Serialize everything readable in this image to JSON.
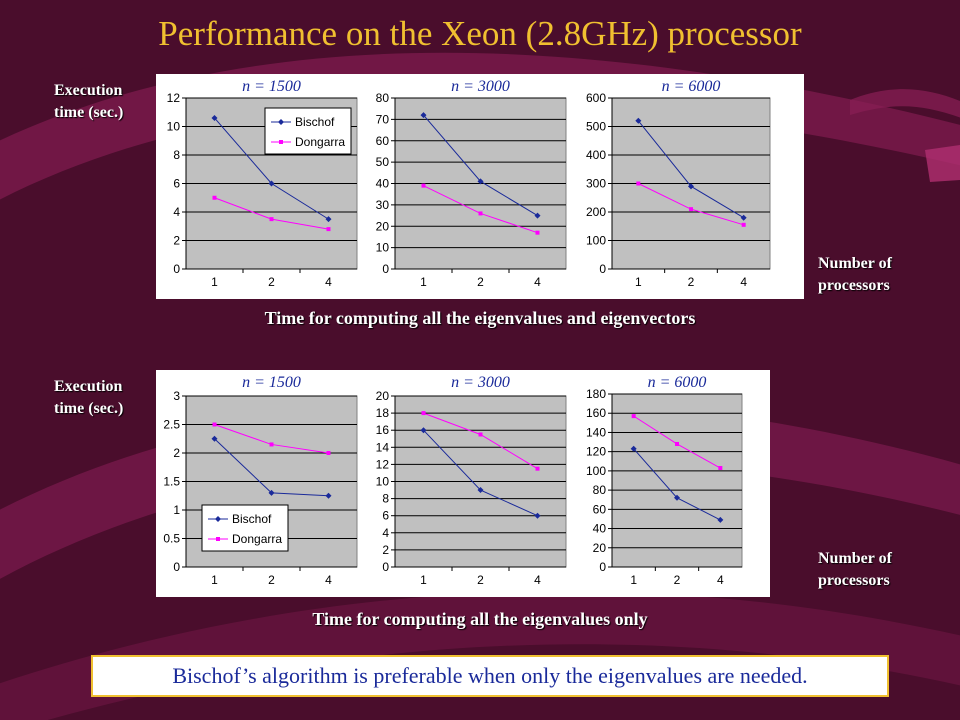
{
  "title": "Performance on the Xeon (2.8GHz) processor",
  "ylabel_line1": "Execution",
  "ylabel_line2": "time (sec.)",
  "xlabel_line1": "Number of",
  "xlabel_line2": "processors",
  "caption_top": "Time for computing all the eigenvalues and eigenvectors",
  "caption_bottom": "Time for computing all the eigenvalues only",
  "conclusion": "Bischof’s algorithm is preferable when only the eigenvalues are needed.",
  "colors": {
    "bischof": "#1a2a9a",
    "dongarra": "#ff00ff",
    "plot_area": "#c0c0c0",
    "title": "#f0c030",
    "background": "#4a0d2c"
  },
  "chart_data": [
    {
      "type": "line",
      "group": "eigenvalues and eigenvectors",
      "n_label": "n = 1500",
      "categories": [
        "1",
        "2",
        "4"
      ],
      "ylim": [
        0,
        12
      ],
      "yticks": [
        0,
        2,
        4,
        6,
        8,
        10,
        12
      ],
      "legend": true,
      "legend_position": "top-right",
      "series": [
        {
          "name": "Bischof",
          "values": [
            10.6,
            6.0,
            3.5
          ]
        },
        {
          "name": "Dongarra",
          "values": [
            5.0,
            3.5,
            2.8
          ]
        }
      ]
    },
    {
      "type": "line",
      "group": "eigenvalues and eigenvectors",
      "n_label": "n = 3000",
      "categories": [
        "1",
        "2",
        "4"
      ],
      "ylim": [
        0,
        80
      ],
      "yticks": [
        0,
        10,
        20,
        30,
        40,
        50,
        60,
        70,
        80
      ],
      "legend": false,
      "series": [
        {
          "name": "Bischof",
          "values": [
            72,
            41,
            25
          ]
        },
        {
          "name": "Dongarra",
          "values": [
            39,
            26,
            17
          ]
        }
      ]
    },
    {
      "type": "line",
      "group": "eigenvalues and eigenvectors",
      "n_label": "n = 6000",
      "categories": [
        "1",
        "2",
        "4"
      ],
      "ylim": [
        0,
        600
      ],
      "yticks": [
        0,
        100,
        200,
        300,
        400,
        500,
        600
      ],
      "legend": false,
      "series": [
        {
          "name": "Bischof",
          "values": [
            520,
            290,
            180
          ]
        },
        {
          "name": "Dongarra",
          "values": [
            300,
            210,
            155
          ]
        }
      ]
    },
    {
      "type": "line",
      "group": "eigenvalues only",
      "n_label": "n = 1500",
      "categories": [
        "1",
        "2",
        "4"
      ],
      "ylim": [
        0,
        3
      ],
      "yticks": [
        0,
        0.5,
        1,
        1.5,
        2,
        2.5,
        3
      ],
      "legend": true,
      "legend_position": "bottom-left",
      "series": [
        {
          "name": "Bischof",
          "values": [
            2.25,
            1.3,
            1.25
          ]
        },
        {
          "name": "Dongarra",
          "values": [
            2.5,
            2.15,
            2.0
          ]
        }
      ]
    },
    {
      "type": "line",
      "group": "eigenvalues only",
      "n_label": "n = 3000",
      "categories": [
        "1",
        "2",
        "4"
      ],
      "ylim": [
        0,
        20
      ],
      "yticks": [
        0,
        2,
        4,
        6,
        8,
        10,
        12,
        14,
        16,
        18,
        20
      ],
      "legend": false,
      "series": [
        {
          "name": "Bischof",
          "values": [
            16,
            9,
            6
          ]
        },
        {
          "name": "Dongarra",
          "values": [
            18,
            15.5,
            11.5
          ]
        }
      ]
    },
    {
      "type": "line",
      "group": "eigenvalues only",
      "n_label": "n = 6000",
      "categories": [
        "1",
        "2",
        "4"
      ],
      "ylim": [
        0,
        180
      ],
      "yticks": [
        0,
        20,
        40,
        60,
        80,
        100,
        120,
        140,
        160,
        180
      ],
      "legend": false,
      "series": [
        {
          "name": "Bischof",
          "values": [
            123,
            72,
            49
          ]
        },
        {
          "name": "Dongarra",
          "values": [
            157,
            128,
            103
          ]
        }
      ]
    }
  ]
}
